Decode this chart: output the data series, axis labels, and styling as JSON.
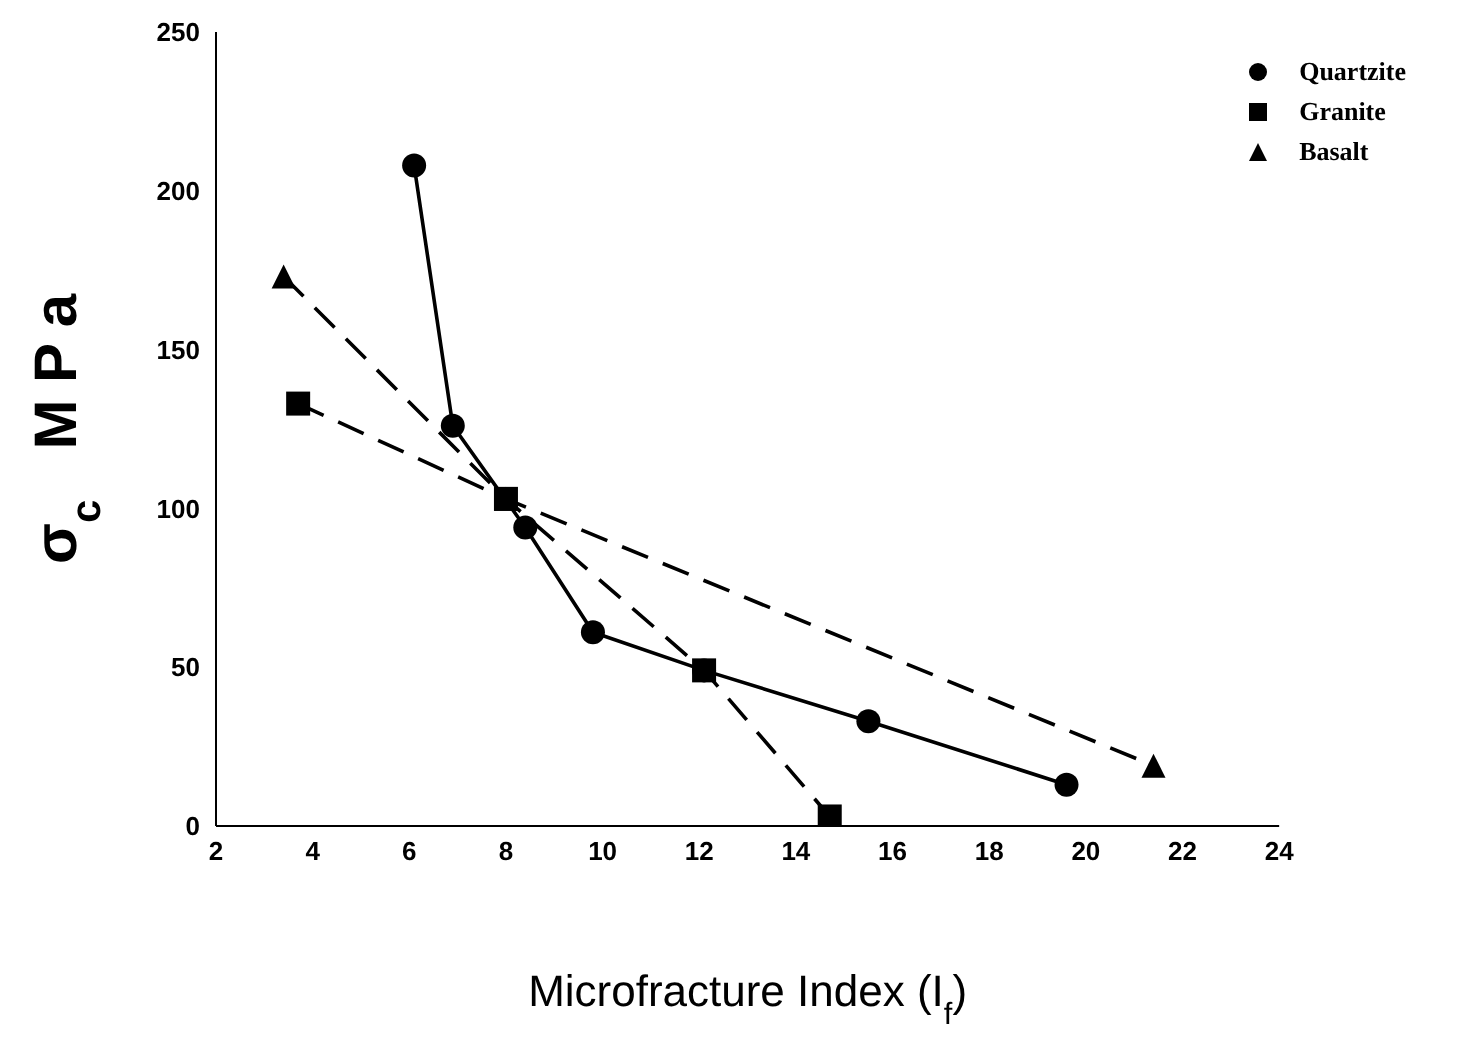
{
  "chart_data": {
    "type": "line",
    "xlabel": "Microfracture Index (I$_{f}$)",
    "ylabel": "σ$_{c}$   M P a",
    "xlim": [
      2,
      24
    ],
    "xticks": [
      2,
      4,
      6,
      8,
      10,
      12,
      14,
      16,
      18,
      20,
      22,
      24
    ],
    "ylim": [
      0,
      250
    ],
    "yticks": [
      0,
      50,
      100,
      150,
      200,
      250
    ],
    "grid": false,
    "legend": "top right",
    "series": [
      {
        "name": "Quartzite",
        "color": "#000000",
        "marker": "circle",
        "line_style": "solid",
        "x": [
          6.1,
          6.9,
          8.4,
          9.8,
          12.1,
          15.5,
          19.6
        ],
        "values": [
          208,
          126,
          94,
          61,
          49,
          33,
          13
        ]
      },
      {
        "name": "Granite",
        "color": "#000000",
        "marker": "square",
        "line_style": "dashed",
        "x": [
          3.7,
          8,
          12.1,
          14.7
        ],
        "values": [
          133,
          103,
          49,
          3
        ]
      },
      {
        "name": "Basalt",
        "color": "#000000",
        "marker": "triangle",
        "line_style": "dashed",
        "x": [
          3.4,
          8,
          21.4
        ],
        "values": [
          173,
          103,
          19
        ]
      }
    ]
  }
}
